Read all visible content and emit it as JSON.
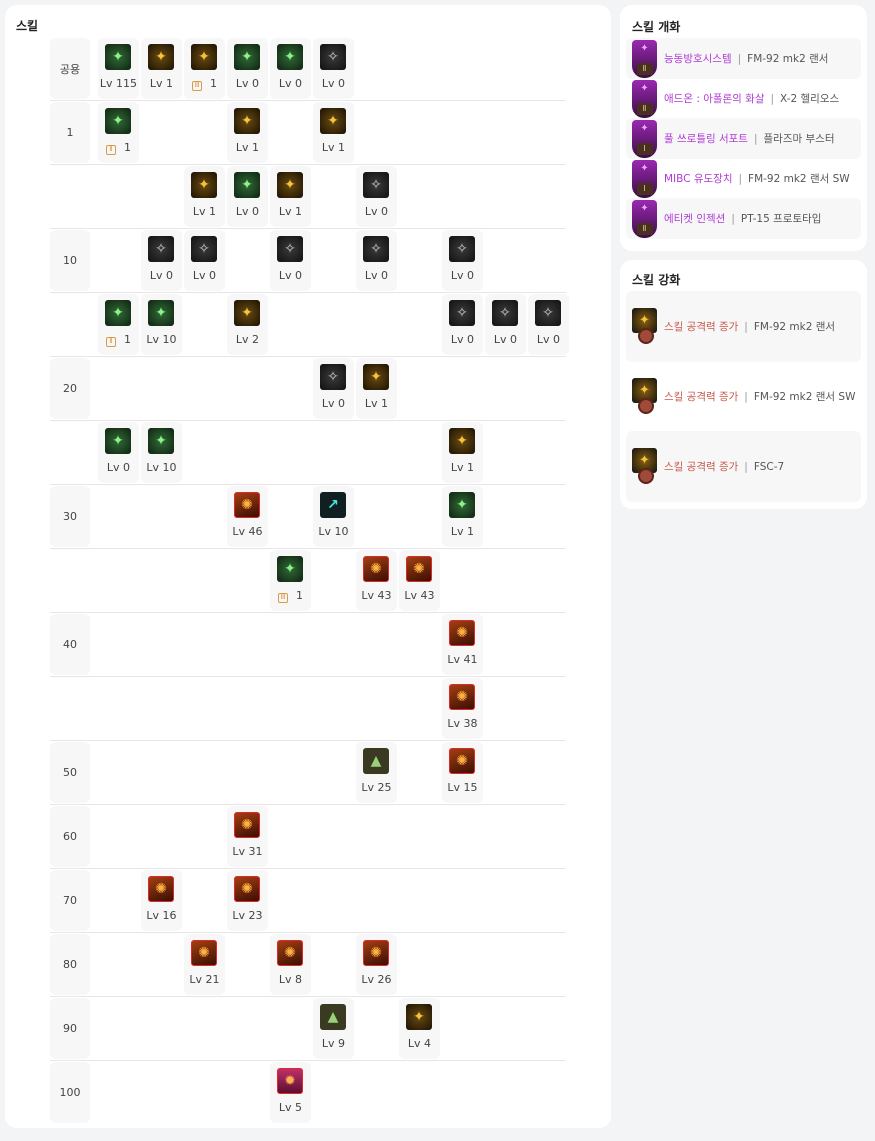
{
  "skills_panel": {
    "title": "스킬",
    "rows": [
      {
        "label": "공용",
        "skills": [
          {
            "col": 0,
            "tone": "green",
            "icon": "running-figure-icon",
            "lv": "Lv 115"
          },
          {
            "col": 1,
            "tone": "gold",
            "icon": "crouch-figure-icon",
            "lv": "Lv 1"
          },
          {
            "col": 2,
            "tone": "gold",
            "icon": "slide-figure-icon",
            "badge": "Ⅲ",
            "lv": "1"
          },
          {
            "col": 3,
            "tone": "green",
            "icon": "slide-figure-icon",
            "lv": "Lv 0"
          },
          {
            "col": 4,
            "tone": "green",
            "icon": "target-icon",
            "lv": "Lv 0"
          },
          {
            "col": 5,
            "tone": "dark",
            "icon": "wings-icon",
            "lv": "Lv 0"
          }
        ]
      },
      {
        "label": "1",
        "skills": [
          {
            "col": 0,
            "tone": "green",
            "icon": "gauntlet-icon",
            "badge": "Ⅱ",
            "lv": "1"
          },
          {
            "col": 3,
            "tone": "gold",
            "icon": "arrow-curve-icon",
            "lv": "Lv 1"
          },
          {
            "col": 5,
            "tone": "gold",
            "icon": "figure-strike-icon",
            "lv": "Lv 1"
          }
        ]
      },
      {
        "label": "",
        "skills": [
          {
            "col": 2,
            "tone": "gold",
            "icon": "burst-icon",
            "lv": "Lv 1"
          },
          {
            "col": 3,
            "tone": "green",
            "icon": "dash-icon",
            "lv": "Lv 0"
          },
          {
            "col": 4,
            "tone": "gold",
            "icon": "speed-lines-icon",
            "lv": "Lv 1"
          },
          {
            "col": 6,
            "tone": "dark",
            "icon": "gun-icon",
            "lv": "Lv 0"
          }
        ]
      },
      {
        "label": "10",
        "skills": [
          {
            "col": 1,
            "tone": "dark",
            "icon": "explosion-icon",
            "lv": "Lv 0"
          },
          {
            "col": 2,
            "tone": "dark",
            "icon": "slash-icon",
            "lv": "Lv 0"
          },
          {
            "col": 4,
            "tone": "dark",
            "icon": "smoke-icon",
            "lv": "Lv 0"
          },
          {
            "col": 6,
            "tone": "dark",
            "icon": "blades-icon",
            "lv": "Lv 0"
          },
          {
            "col": 8,
            "tone": "dark",
            "icon": "upload-icon",
            "lv": "Lv 0"
          }
        ]
      },
      {
        "label": "",
        "skills": [
          {
            "col": 0,
            "tone": "green",
            "icon": "rifle-icon",
            "badge": "Ⅱ",
            "lv": "1"
          },
          {
            "col": 1,
            "tone": "green",
            "icon": "syringe-icon",
            "lv": "Lv 10"
          },
          {
            "col": 3,
            "tone": "gold",
            "icon": "ground-blast-icon",
            "lv": "Lv 2"
          },
          {
            "col": 8,
            "tone": "dark",
            "icon": "figure-leap-icon",
            "lv": "Lv 0"
          },
          {
            "col": 9,
            "tone": "dark",
            "icon": "mask-icon",
            "lv": "Lv 0"
          },
          {
            "col": 10,
            "tone": "dark",
            "icon": "grenade-icon",
            "lv": "Lv 0"
          }
        ]
      },
      {
        "label": "20",
        "skills": [
          {
            "col": 5,
            "tone": "dark",
            "icon": "swirl-icon",
            "lv": "Lv 0"
          },
          {
            "col": 6,
            "tone": "gold",
            "icon": "eye-icon",
            "lv": "Lv 1"
          }
        ]
      },
      {
        "label": "",
        "skills": [
          {
            "col": 0,
            "tone": "green",
            "icon": "strike-icon",
            "lv": "Lv 0"
          },
          {
            "col": 1,
            "tone": "green",
            "icon": "fist-icon",
            "lv": "Lv 10"
          },
          {
            "col": 8,
            "tone": "gold",
            "icon": "cannon-icon",
            "lv": "Lv 1"
          }
        ]
      },
      {
        "label": "30",
        "skills": [
          {
            "col": 3,
            "tone": "red",
            "icon": "beam-icon",
            "lv": "Lv 46"
          },
          {
            "col": 5,
            "tone": "cyan",
            "icon": "weapon-plus-icon",
            "lv": "Lv 10"
          },
          {
            "col": 8,
            "tone": "green",
            "icon": "radial-icon",
            "lv": "Lv 1"
          }
        ]
      },
      {
        "label": "",
        "skills": [
          {
            "col": 4,
            "tone": "green",
            "icon": "spiky-orb-icon",
            "badge": "Ⅲ",
            "lv": "1"
          },
          {
            "col": 6,
            "tone": "red",
            "icon": "fire-wave-icon",
            "lv": "Lv 43"
          },
          {
            "col": 7,
            "tone": "red",
            "icon": "missile-pod-icon",
            "lv": "Lv 43"
          }
        ]
      },
      {
        "label": "40",
        "skills": [
          {
            "col": 8,
            "tone": "red",
            "icon": "nova-icon",
            "lv": "Lv 41"
          }
        ]
      },
      {
        "label": "",
        "skills": [
          {
            "col": 8,
            "tone": "red",
            "icon": "impact-icon",
            "lv": "Lv 38"
          }
        ]
      },
      {
        "label": "50",
        "skills": [
          {
            "col": 6,
            "tone": "moss",
            "icon": "arrow-up-icon",
            "lv": "Lv 25"
          },
          {
            "col": 8,
            "tone": "red",
            "icon": "cluster-icon",
            "lv": "Lv 15"
          }
        ]
      },
      {
        "label": "60",
        "skills": [
          {
            "col": 3,
            "tone": "red",
            "icon": "dragon-icon",
            "lv": "Lv 31"
          }
        ]
      },
      {
        "label": "70",
        "skills": [
          {
            "col": 1,
            "tone": "red",
            "icon": "launcher-icon",
            "lv": "Lv 16"
          },
          {
            "col": 3,
            "tone": "red",
            "icon": "spark-icon",
            "lv": "Lv 23"
          }
        ]
      },
      {
        "label": "80",
        "skills": [
          {
            "col": 2,
            "tone": "red",
            "icon": "ring-icon",
            "lv": "Lv 21"
          },
          {
            "col": 4,
            "tone": "red",
            "icon": "mech-icon",
            "lv": "Lv 8"
          },
          {
            "col": 6,
            "tone": "red",
            "icon": "turret-icon",
            "lv": "Lv 26"
          }
        ]
      },
      {
        "label": "90",
        "skills": [
          {
            "col": 5,
            "tone": "moss",
            "icon": "robot-icon",
            "lv": "Lv 9"
          },
          {
            "col": 7,
            "tone": "gold",
            "icon": "tank-icon",
            "lv": "Lv 4"
          }
        ]
      },
      {
        "label": "100",
        "skills": [
          {
            "col": 4,
            "tone": "pink",
            "icon": "ultimate-icon",
            "lv": "Lv 5"
          }
        ]
      }
    ]
  },
  "evolution_panel": {
    "title": "스킬 개화",
    "items": [
      {
        "name": "능동방호시스템",
        "equip": "FM-92 mk2 랜서",
        "rank": "Ⅱ"
      },
      {
        "name": "애드온 : 아폴론의 화살",
        "equip": "X-2 헬리오스",
        "rank": "Ⅱ"
      },
      {
        "name": "풀 쓰로틀링 서포트",
        "equip": "플라즈마 부스터",
        "rank": "Ⅰ"
      },
      {
        "name": "MIBC 유도장치",
        "equip": "FM-92 mk2 랜서 SW",
        "rank": "Ⅰ"
      },
      {
        "name": "에티켓 인젝션",
        "equip": "PT-15 프로토타입",
        "rank": "Ⅱ"
      }
    ]
  },
  "enhance_panel": {
    "title": "스킬 강화",
    "items": [
      {
        "name": "스킬 공격력 증가",
        "equip": "FM-92 mk2 랜서"
      },
      {
        "name": "스킬 공격력 증가",
        "equip": "FM-92 mk2 랜서 SW"
      },
      {
        "name": "스킬 공격력 증가",
        "equip": "FSC-7"
      }
    ]
  },
  "separator": "|",
  "colors": {
    "evolution_name": "#b03bd4",
    "enhance_name": "#c85a4a",
    "skill_border_red": "#e3262b",
    "badge": "#d99a4a"
  }
}
